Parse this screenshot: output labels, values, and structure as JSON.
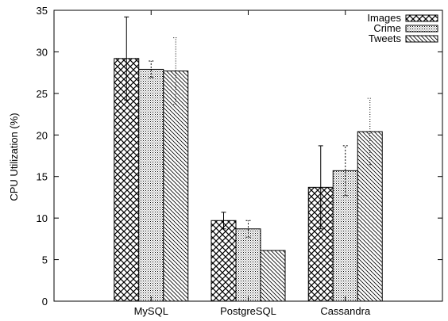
{
  "chart_data": {
    "type": "bar",
    "title": "",
    "xlabel": "",
    "ylabel": "CPU Utilization (%)",
    "ylim": [
      0,
      35
    ],
    "yticks": [
      0,
      5,
      10,
      15,
      20,
      25,
      30,
      35
    ],
    "categories": [
      "MySQL",
      "PostgreSQL",
      "Cassandra"
    ],
    "series": [
      {
        "name": "Images",
        "pattern": "crosshatch",
        "values": [
          29.2,
          9.7,
          13.7
        ],
        "error": [
          5.0,
          1.0,
          5.0
        ]
      },
      {
        "name": "Crime",
        "pattern": "dots",
        "values": [
          27.9,
          8.7,
          15.7
        ],
        "error": [
          1.0,
          1.0,
          3.0
        ]
      },
      {
        "name": "Tweets",
        "pattern": "diagonal",
        "values": [
          27.7,
          6.1,
          20.4
        ],
        "error": [
          4.0,
          0.0,
          4.0
        ]
      }
    ],
    "grid": false,
    "legend_position": "top-right",
    "colors": {
      "axis": "#000000",
      "bar_stroke": "#000000",
      "background": "#ffffff"
    }
  }
}
